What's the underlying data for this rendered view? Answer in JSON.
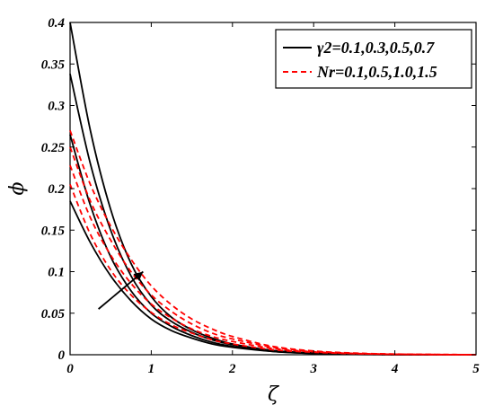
{
  "chart_data": {
    "type": "line",
    "xlabel": "ζ",
    "ylabel": "ϕ",
    "xlim": [
      0,
      5
    ],
    "ylim": [
      0,
      0.4
    ],
    "x_ticks": [
      "0",
      "1",
      "2",
      "3",
      "4",
      "5"
    ],
    "y_ticks": [
      "0",
      "0.05",
      "0.1",
      "0.15",
      "0.2",
      "0.25",
      "0.3",
      "0.35",
      "0.4"
    ],
    "legend_position": "top-right",
    "grid": false,
    "x": [
      0,
      0.25,
      0.5,
      0.75,
      1,
      1.25,
      1.5,
      1.75,
      2,
      2.5,
      3,
      3.5,
      4,
      4.5,
      5
    ],
    "legend": [
      {
        "label": "γ2=0.1,0.3,0.5,0.7",
        "color": "#000000",
        "style": "solid"
      },
      {
        "label": "Nr=0.1,0.5,1.0,1.5",
        "color": "#ff0000",
        "style": "dashed"
      }
    ],
    "series": [
      {
        "group": "gamma2",
        "color": "#000000",
        "dash": "solid",
        "values": [
          0.4,
          0.27,
          0.175,
          0.11,
          0.07,
          0.045,
          0.03,
          0.02,
          0.013,
          0.005,
          0.002,
          0.0007,
          0.0002,
          0,
          0
        ]
      },
      {
        "group": "gamma2",
        "color": "#000000",
        "dash": "solid",
        "values": [
          0.338,
          0.23,
          0.15,
          0.095,
          0.06,
          0.04,
          0.027,
          0.018,
          0.012,
          0.005,
          0.002,
          0.0007,
          0.0002,
          0,
          0
        ]
      },
      {
        "group": "gamma2",
        "color": "#000000",
        "dash": "solid",
        "values": [
          0.265,
          0.18,
          0.118,
          0.077,
          0.05,
          0.034,
          0.023,
          0.015,
          0.01,
          0.004,
          0.0015,
          0.0005,
          0.0001,
          0,
          0
        ]
      },
      {
        "group": "gamma2",
        "color": "#000000",
        "dash": "solid",
        "values": [
          0.185,
          0.135,
          0.095,
          0.065,
          0.043,
          0.029,
          0.02,
          0.013,
          0.009,
          0.004,
          0.0015,
          0.0005,
          0.0001,
          0,
          0
        ]
      },
      {
        "group": "Nr",
        "color": "#ff0000",
        "dash": "dashed",
        "values": [
          0.27,
          0.205,
          0.155,
          0.115,
          0.083,
          0.06,
          0.043,
          0.031,
          0.022,
          0.01,
          0.0045,
          0.002,
          0.0008,
          0.0003,
          0.0001
        ]
      },
      {
        "group": "Nr",
        "color": "#ff0000",
        "dash": "dashed",
        "values": [
          0.25,
          0.185,
          0.138,
          0.1,
          0.072,
          0.052,
          0.037,
          0.026,
          0.019,
          0.009,
          0.004,
          0.0017,
          0.0007,
          0.0003,
          0.0001
        ]
      },
      {
        "group": "Nr",
        "color": "#ff0000",
        "dash": "dashed",
        "values": [
          0.228,
          0.165,
          0.12,
          0.086,
          0.061,
          0.044,
          0.031,
          0.022,
          0.016,
          0.0075,
          0.0035,
          0.0015,
          0.0006,
          0.0002,
          0.0001
        ]
      },
      {
        "group": "Nr",
        "color": "#ff0000",
        "dash": "dashed",
        "values": [
          0.205,
          0.145,
          0.102,
          0.072,
          0.051,
          0.036,
          0.026,
          0.018,
          0.013,
          0.006,
          0.003,
          0.0013,
          0.0005,
          0.0002,
          0.0001
        ]
      }
    ],
    "annotation": {
      "type": "arrow",
      "from": [
        0.35,
        0.055
      ],
      "to": [
        0.9,
        0.1
      ]
    }
  }
}
